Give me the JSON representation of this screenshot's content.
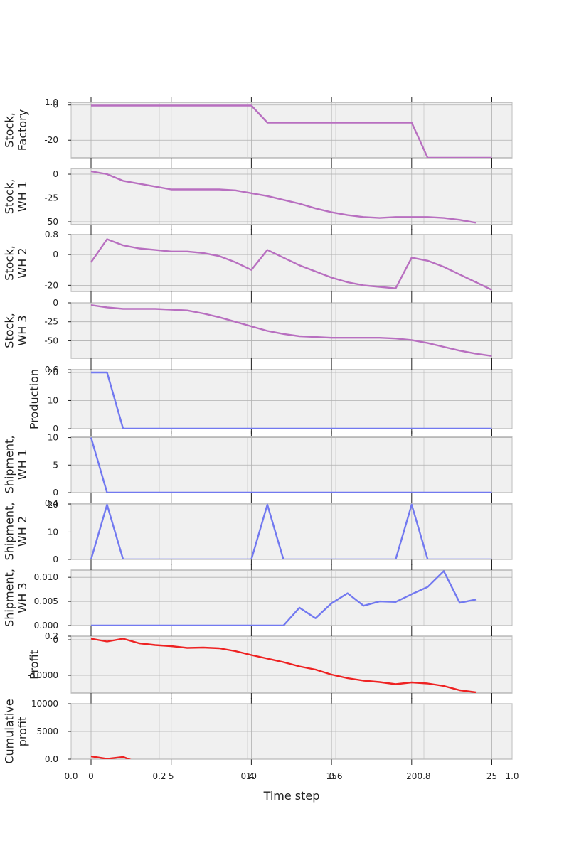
{
  "chart_data": [
    {
      "type": "line",
      "ylabel": "Stock,\nFactory",
      "ylim": [
        -30,
        1.5
      ],
      "yticks": [
        0,
        -20
      ],
      "top_tick": "1.0",
      "color": "#b86fc0",
      "series": [
        {
          "values": [
            -0.3,
            -0.3,
            -0.3,
            -0.3,
            -0.3,
            -0.3,
            -0.3,
            -0.3,
            -0.3,
            -0.3,
            -0.3,
            -10,
            -10,
            -10,
            -10,
            -10,
            -10,
            -10,
            -10,
            -10,
            -10,
            -30,
            -30,
            -30,
            -30,
            -30
          ]
        }
      ]
    },
    {
      "type": "line",
      "ylabel": "Stock,\nWH 1",
      "ylim": [
        -53,
        6
      ],
      "yticks": [
        0,
        -25,
        -50
      ],
      "top_tick": "",
      "color": "#b86fc0",
      "series": [
        {
          "values": [
            3,
            0,
            -7,
            -10,
            -13,
            -16,
            -16,
            -16,
            -16,
            -17,
            -20,
            -23,
            -27,
            -31,
            -36,
            -40,
            -43,
            -45,
            -46,
            -45,
            -45,
            -45,
            -46,
            -48,
            -51
          ]
        }
      ]
    },
    {
      "type": "line",
      "ylabel": "Stock,\nWH 2",
      "ylim": [
        -24,
        13
      ],
      "yticks": [
        0,
        -20
      ],
      "top_tick": "0.8",
      "color": "#b86fc0",
      "series": [
        {
          "values": [
            -5,
            10,
            6,
            4,
            3,
            2,
            2,
            1,
            -1,
            -5,
            -10,
            3,
            -2,
            -7,
            -11,
            -15,
            -18,
            -20,
            -21,
            -22,
            -2,
            -4,
            -8,
            -13,
            -18,
            -23
          ]
        }
      ]
    },
    {
      "type": "line",
      "ylabel": "Stock,\nWH 3",
      "ylim": [
        -73,
        0
      ],
      "yticks": [
        0,
        -25,
        -50
      ],
      "top_tick": "",
      "color": "#b86fc0",
      "series": [
        {
          "values": [
            -3,
            -6,
            -8,
            -8,
            -8,
            -9,
            -10,
            -14,
            -19,
            -25,
            -31,
            -37,
            -41,
            -44,
            -45,
            -46,
            -46,
            -46,
            -46,
            -47,
            -49,
            -53,
            -58,
            -63,
            -67,
            -70
          ]
        }
      ]
    },
    {
      "type": "line",
      "ylabel": "Production",
      "ylim": [
        0,
        21
      ],
      "yticks": [
        20,
        10,
        0
      ],
      "top_tick": "0.6",
      "color": "#7279f0",
      "series": [
        {
          "values": [
            20,
            20,
            0,
            0,
            0,
            0,
            0,
            0,
            0,
            0,
            0,
            0,
            0,
            0,
            0,
            0,
            0,
            0,
            0,
            0,
            0,
            0,
            0,
            0,
            0,
            0
          ]
        }
      ]
    },
    {
      "type": "line",
      "ylabel": "Shipment,\nWH 1",
      "ylim": [
        0,
        10.2
      ],
      "yticks": [
        10,
        5,
        0
      ],
      "top_tick": "",
      "color": "#7279f0",
      "series": [
        {
          "values": [
            10,
            0,
            0,
            0,
            0,
            0,
            0,
            0,
            0,
            0,
            0,
            0,
            0,
            0,
            0,
            0,
            0,
            0,
            0,
            0,
            0,
            0,
            0,
            0,
            0,
            0
          ]
        }
      ]
    },
    {
      "type": "line",
      "ylabel": "Shipment,\nWH 2",
      "ylim": [
        0,
        20.5
      ],
      "yticks": [
        20,
        10,
        0
      ],
      "top_tick": "0.4",
      "color": "#7279f0",
      "series": [
        {
          "values": [
            0,
            20,
            0,
            0,
            0,
            0,
            0,
            0,
            0,
            0,
            0,
            20,
            0,
            0,
            0,
            0,
            0,
            0,
            0,
            0,
            20,
            0,
            0,
            0,
            0,
            0
          ]
        }
      ]
    },
    {
      "type": "line",
      "ylabel": "Shipment,\nWH 3",
      "ylim": [
        0,
        0.0115
      ],
      "yticks": [
        0.01,
        0.005,
        0.0
      ],
      "ytick_labels": [
        "0.010",
        "0.005",
        "0.000"
      ],
      "top_tick": "",
      "color": "#7279f0",
      "series": [
        {
          "values": [
            0,
            0,
            0,
            0,
            0,
            0,
            0,
            0,
            0,
            0,
            0,
            0,
            0,
            0.0037,
            0.0015,
            0.0046,
            0.0067,
            0.0041,
            0.005,
            0.0049,
            0.0065,
            0.008,
            0.0113,
            0.0047,
            0.0054
          ]
        }
      ]
    },
    {
      "type": "line",
      "ylabel": "Profit",
      "ylim": [
        -15000,
        1000
      ],
      "yticks": [
        0,
        -10000
      ],
      "top_tick": "0.2",
      "color": "#ee2222",
      "series": [
        {
          "values": [
            300,
            -500,
            300,
            -1000,
            -1500,
            -1800,
            -2300,
            -2200,
            -2400,
            -3200,
            -4300,
            -5300,
            -6300,
            -7500,
            -8400,
            -9800,
            -10800,
            -11500,
            -11900,
            -12500,
            -12000,
            -12300,
            -13000,
            -14200,
            -14800
          ]
        }
      ]
    },
    {
      "type": "line",
      "ylabel": "Cumulative\nprofit",
      "ylim": [
        0,
        10000
      ],
      "yticks": [
        10000,
        5000,
        0
      ],
      "top_tick": "",
      "color": "#ee2222",
      "series": [
        {
          "values": [
            500,
            50,
            400,
            -700
          ]
        }
      ]
    }
  ],
  "x_axis": {
    "label": "Time step",
    "int_ticks": [
      {
        "x": 0,
        "label": "0"
      },
      {
        "x": 5,
        "label": "5"
      },
      {
        "x": 10,
        "label": "10"
      },
      {
        "x": 15,
        "label": "15"
      },
      {
        "x": 20,
        "label": "20"
      },
      {
        "x": 25,
        "label": "25"
      }
    ],
    "frac_ticks": [
      {
        "f": 0,
        "label": "0.0"
      },
      {
        "f": 0.2,
        "label": "0.2"
      },
      {
        "f": 0.4,
        "label": "0.4"
      },
      {
        "f": 0.6,
        "label": "0.6"
      },
      {
        "f": 0.8,
        "label": "0.8"
      },
      {
        "f": 1,
        "label": "1.0"
      }
    ],
    "overlay_ylabel": "0.0"
  }
}
